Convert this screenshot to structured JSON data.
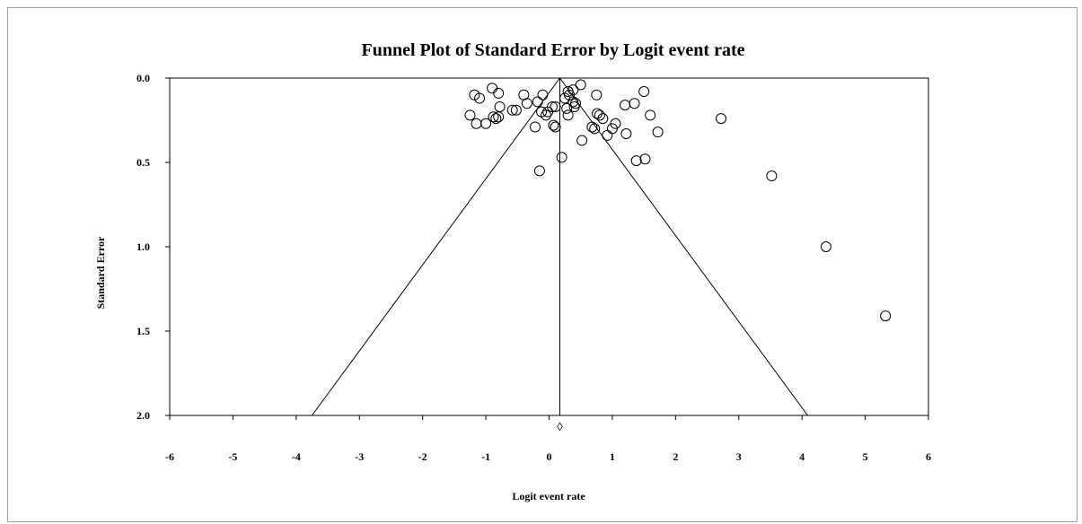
{
  "chart_data": {
    "type": "scatter",
    "title": "Funnel Plot of Standard Error by Logit event rate",
    "xlabel": "Logit event rate",
    "ylabel": "Standard Error",
    "xlim": [
      -6,
      6
    ],
    "ylim": [
      0,
      2
    ],
    "y_inverted": true,
    "grid": false,
    "xticks": [
      -6,
      -5,
      -4,
      -3,
      -2,
      -1,
      0,
      1,
      2,
      3,
      4,
      5,
      6
    ],
    "xtick_labels": [
      "-6",
      "-5",
      "-4",
      "-3",
      "-2",
      "-1",
      "0",
      "1",
      "2",
      "3",
      "4",
      "5",
      "6"
    ],
    "yticks": [
      0,
      0.5,
      1,
      1.5,
      2
    ],
    "ytick_labels": [
      "0.0",
      "0.5",
      "1.0",
      "1.5",
      "2.0"
    ],
    "summary_effect": 0.17,
    "funnel_base": [
      -3.75,
      4.09
    ],
    "summary_marker": "◊",
    "colors": {
      "marker_stroke": "#000000",
      "axis": "#000000",
      "border": "#a0a0a0"
    },
    "points": [
      {
        "x": -1.25,
        "y": 0.22
      },
      {
        "x": -1.18,
        "y": 0.1
      },
      {
        "x": -1.15,
        "y": 0.27
      },
      {
        "x": -1.1,
        "y": 0.12
      },
      {
        "x": -1.0,
        "y": 0.27
      },
      {
        "x": -0.9,
        "y": 0.06
      },
      {
        "x": -0.88,
        "y": 0.23
      },
      {
        "x": -0.84,
        "y": 0.24
      },
      {
        "x": -0.8,
        "y": 0.09
      },
      {
        "x": -0.78,
        "y": 0.17
      },
      {
        "x": -0.8,
        "y": 0.23
      },
      {
        "x": -0.58,
        "y": 0.19
      },
      {
        "x": -0.52,
        "y": 0.19
      },
      {
        "x": -0.4,
        "y": 0.1
      },
      {
        "x": -0.35,
        "y": 0.15
      },
      {
        "x": -0.22,
        "y": 0.29
      },
      {
        "x": -0.18,
        "y": 0.14
      },
      {
        "x": -0.15,
        "y": 0.55
      },
      {
        "x": -0.12,
        "y": 0.2
      },
      {
        "x": -0.1,
        "y": 0.1
      },
      {
        "x": -0.05,
        "y": 0.22
      },
      {
        "x": -0.02,
        "y": 0.2
      },
      {
        "x": 0.05,
        "y": 0.17
      },
      {
        "x": 0.07,
        "y": 0.28
      },
      {
        "x": 0.1,
        "y": 0.29
      },
      {
        "x": 0.1,
        "y": 0.17
      },
      {
        "x": 0.2,
        "y": 0.47
      },
      {
        "x": 0.25,
        "y": 0.12
      },
      {
        "x": 0.28,
        "y": 0.18
      },
      {
        "x": 0.3,
        "y": 0.08
      },
      {
        "x": 0.3,
        "y": 0.22
      },
      {
        "x": 0.32,
        "y": 0.1
      },
      {
        "x": 0.38,
        "y": 0.07
      },
      {
        "x": 0.38,
        "y": 0.14
      },
      {
        "x": 0.4,
        "y": 0.17
      },
      {
        "x": 0.42,
        "y": 0.15
      },
      {
        "x": 0.5,
        "y": 0.04
      },
      {
        "x": 0.52,
        "y": 0.37
      },
      {
        "x": 0.68,
        "y": 0.29
      },
      {
        "x": 0.72,
        "y": 0.3
      },
      {
        "x": 0.75,
        "y": 0.1
      },
      {
        "x": 0.76,
        "y": 0.21
      },
      {
        "x": 0.8,
        "y": 0.22
      },
      {
        "x": 0.85,
        "y": 0.24
      },
      {
        "x": 0.92,
        "y": 0.34
      },
      {
        "x": 1.0,
        "y": 0.3
      },
      {
        "x": 1.05,
        "y": 0.27
      },
      {
        "x": 1.2,
        "y": 0.16
      },
      {
        "x": 1.22,
        "y": 0.33
      },
      {
        "x": 1.35,
        "y": 0.15
      },
      {
        "x": 1.38,
        "y": 0.49
      },
      {
        "x": 1.5,
        "y": 0.08
      },
      {
        "x": 1.52,
        "y": 0.48
      },
      {
        "x": 1.6,
        "y": 0.22
      },
      {
        "x": 1.72,
        "y": 0.32
      },
      {
        "x": 2.72,
        "y": 0.24
      },
      {
        "x": 3.52,
        "y": 0.58
      },
      {
        "x": 4.38,
        "y": 1.0
      },
      {
        "x": 5.32,
        "y": 1.41
      }
    ]
  }
}
